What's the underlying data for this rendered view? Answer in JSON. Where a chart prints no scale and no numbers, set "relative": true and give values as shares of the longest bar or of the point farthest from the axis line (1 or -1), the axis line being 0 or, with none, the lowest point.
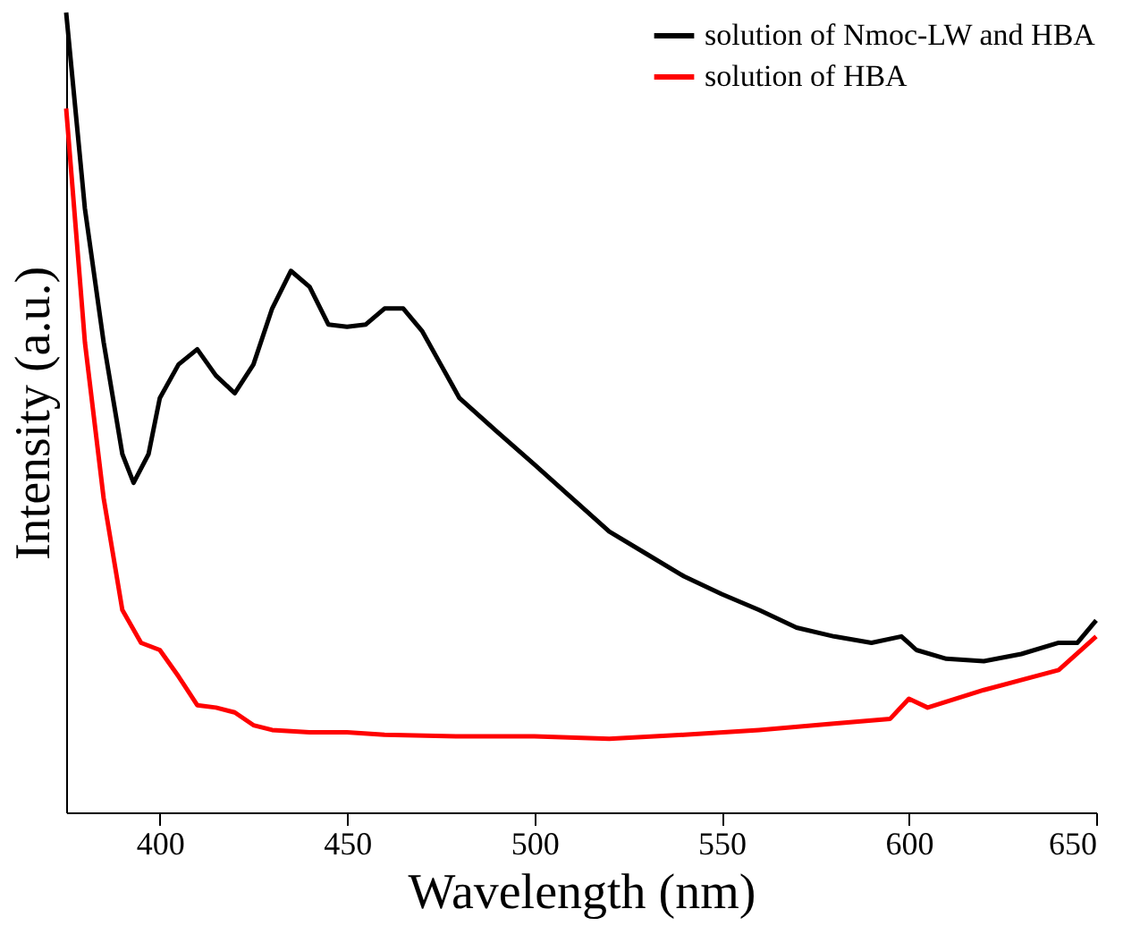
{
  "chart_data": {
    "type": "line",
    "xlabel": "Wavelength (nm)",
    "ylabel": "Intensity (a.u.)",
    "relative": true,
    "xlim": [
      375,
      650
    ],
    "xticks": [
      400,
      450,
      500,
      550,
      600,
      650
    ],
    "legend": "top right",
    "grid": false,
    "line_style": "solid",
    "marker": "none",
    "series": [
      {
        "name": "solution of Nmoc-LW and HBA",
        "color": "#000000",
        "x": [
          375,
          380,
          385,
          390,
          393,
          397,
          400,
          405,
          410,
          415,
          420,
          425,
          430,
          435,
          440,
          445,
          450,
          455,
          460,
          465,
          470,
          475,
          480,
          490,
          500,
          510,
          520,
          530,
          540,
          550,
          560,
          570,
          580,
          590,
          598,
          602,
          610,
          620,
          630,
          640,
          645,
          650
        ],
        "values": [
          1.0,
          0.755,
          0.588,
          0.448,
          0.412,
          0.448,
          0.518,
          0.56,
          0.579,
          0.546,
          0.524,
          0.56,
          0.63,
          0.677,
          0.657,
          0.61,
          0.607,
          0.61,
          0.63,
          0.63,
          0.602,
          0.56,
          0.518,
          0.476,
          0.435,
          0.393,
          0.351,
          0.323,
          0.295,
          0.273,
          0.253,
          0.231,
          0.22,
          0.212,
          0.22,
          0.203,
          0.192,
          0.189,
          0.198,
          0.212,
          0.212,
          0.24
        ]
      },
      {
        "name": "solution of HBA",
        "color": "#ff0000",
        "x": [
          375,
          380,
          385,
          390,
          395,
          400,
          405,
          410,
          415,
          420,
          425,
          430,
          440,
          450,
          460,
          480,
          500,
          520,
          540,
          560,
          580,
          595,
          600,
          605,
          620,
          640,
          650
        ],
        "values": [
          0.88,
          0.588,
          0.393,
          0.253,
          0.212,
          0.203,
          0.17,
          0.134,
          0.131,
          0.125,
          0.109,
          0.103,
          0.1,
          0.1,
          0.097,
          0.095,
          0.095,
          0.092,
          0.097,
          0.103,
          0.111,
          0.117,
          0.142,
          0.131,
          0.153,
          0.178,
          0.22
        ]
      }
    ]
  }
}
